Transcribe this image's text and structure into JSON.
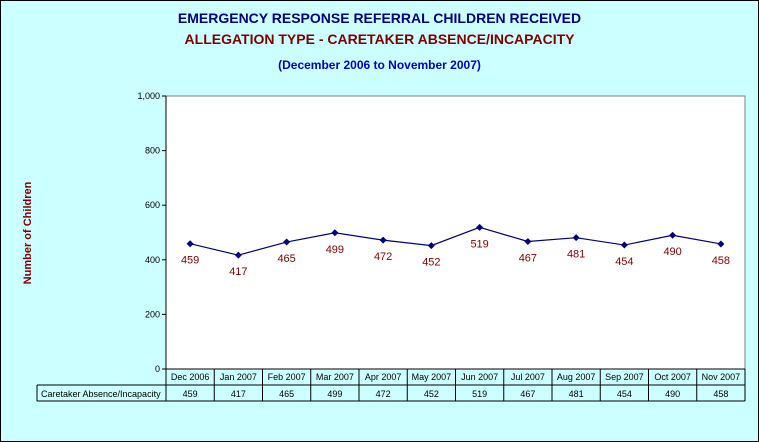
{
  "titles": {
    "line1": "EMERGENCY RESPONSE REFERRAL CHILDREN RECEIVED",
    "line2": "ALLEGATION TYPE - CARETAKER ABSENCE/INCAPACITY",
    "line3": "(December 2006 to November 2007)"
  },
  "colors": {
    "background": "#ccffff",
    "plot_area": "#ffffff",
    "series_line": "#000080",
    "data_label": "#800000",
    "title_blue": "#000080",
    "title_red": "#800000",
    "subtitle": "#0000cc"
  },
  "chart_data": {
    "type": "line",
    "title": "EMERGENCY RESPONSE REFERRAL CHILDREN RECEIVED",
    "subtitle": "ALLEGATION TYPE - CARETAKER ABSENCE/INCAPACITY",
    "xlabel": "",
    "ylabel": "Number of Children",
    "categories": [
      "Dec 2006",
      "Jan 2007",
      "Feb 2007",
      "Mar 2007",
      "Apr 2007",
      "May 2007",
      "Jun 2007",
      "Jul 2007",
      "Aug 2007",
      "Sep 2007",
      "Oct 2007",
      "Nov 2007"
    ],
    "series": [
      {
        "name": "Caretaker Absence/Incapacity",
        "values": [
          459,
          417,
          465,
          499,
          472,
          452,
          519,
          467,
          481,
          454,
          490,
          458
        ]
      }
    ],
    "ylim": [
      0,
      1000
    ],
    "yticks": [
      0,
      200,
      400,
      600,
      800,
      1000
    ],
    "ytick_labels": [
      "0",
      "200",
      "400",
      "600",
      "800",
      "1,000"
    ],
    "grid": false,
    "legend": "data-table-below",
    "marker": "diamond",
    "data_labels": true
  }
}
